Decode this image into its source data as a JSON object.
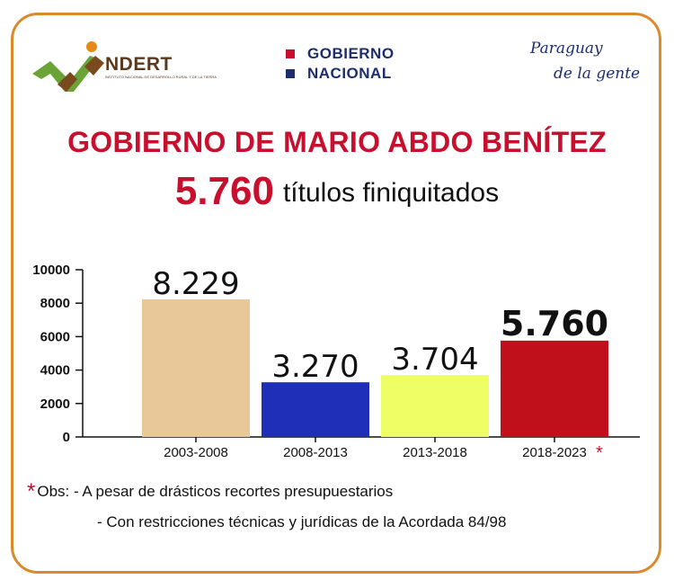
{
  "header": {
    "indert_name": "NDERT",
    "indert_subtitle": "INSTITUTO NACIONAL DE DESARROLLO RURAL Y DE LA TIERRA",
    "gobierno_line1": "GOBIERNO",
    "gobierno_line2": "NACIONAL",
    "paraguay_line1": "Paraguay",
    "paraguay_line2": "de la gente"
  },
  "title": "GOBIERNO DE MARIO ABDO BENÍTEZ",
  "subtitle": {
    "number": "5.760",
    "text": "títulos finiquitados"
  },
  "colors": {
    "accent": "#c8102e",
    "frame": "#d98a2b",
    "navy": "#1c2e6e"
  },
  "chart_data": {
    "type": "bar",
    "categories": [
      "2003-2008",
      "2008-2013",
      "2013-2018",
      "2018-2023"
    ],
    "values": [
      8229,
      3270,
      3704,
      5760
    ],
    "data_labels": [
      "8.229",
      "3.270",
      "3.704",
      "5.760"
    ],
    "colors": [
      "#e8c898",
      "#1f2fb8",
      "#eeff66",
      "#c0101c"
    ],
    "ylim": [
      0,
      10000
    ],
    "yticks": [
      0,
      2000,
      4000,
      6000,
      8000,
      10000
    ],
    "ytick_labels": [
      "0",
      "2000",
      "4000",
      "6000",
      "8000",
      "10000"
    ],
    "highlight_index": 3,
    "category_marker": "*",
    "grid": false
  },
  "obs": {
    "marker": "*",
    "line1": "Obs: - A pesar de drásticos recortes presupuestarios",
    "line2": "- Con restricciones técnicas y jurídicas de la Acordada 84/98"
  }
}
